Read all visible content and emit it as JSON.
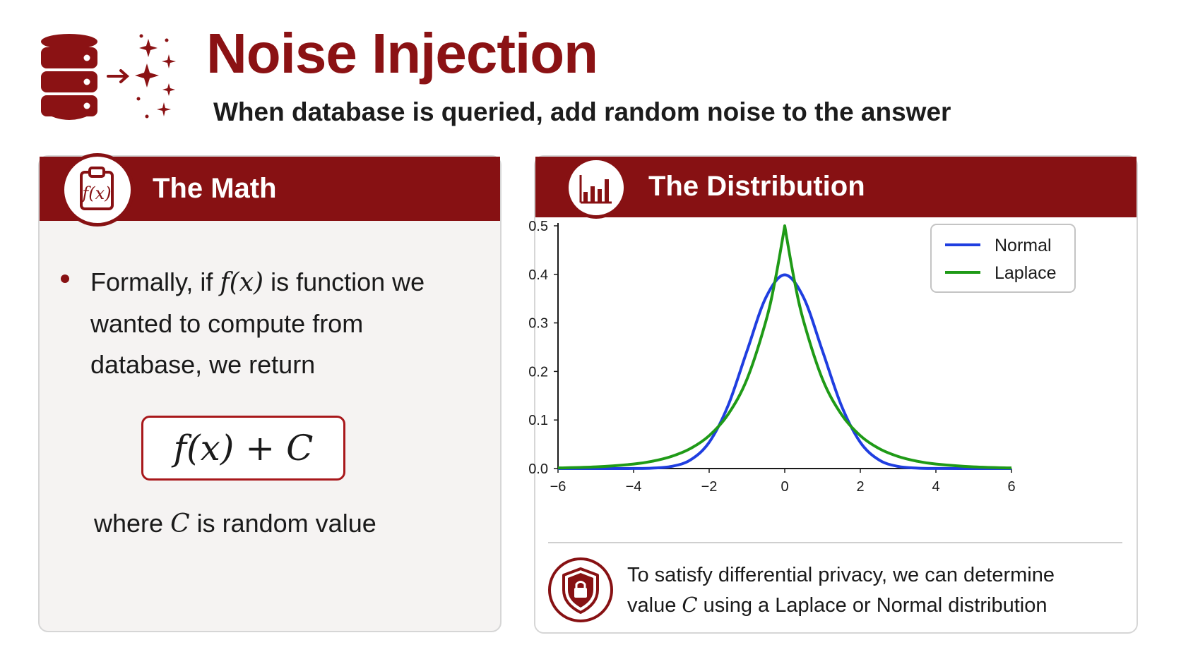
{
  "header": {
    "title": "Noise Injection",
    "subtitle": "When database is queried, add random noise to the answer"
  },
  "math_card": {
    "title": "The Math",
    "bullet_pre": "Formally, if ",
    "bullet_math": "f(x)",
    "bullet_post": " is function we wanted to compute from database, we return",
    "formula": "f(x) + C",
    "where_pre": "where ",
    "where_math": "C",
    "where_post": " is random value"
  },
  "distribution_card": {
    "title": "The Distribution",
    "note_line1": "To satisfy differential privacy, we can determine",
    "note_pre": "value ",
    "note_math": "C",
    "note_post": " using a Laplace or Normal distribution"
  },
  "icons": {
    "header": "database-noise-icon",
    "math": "function-clipboard-icon",
    "distribution": "bar-chart-icon",
    "note": "shield-lock-icon"
  },
  "colors": {
    "accent": "#871113",
    "title": "#8b1214",
    "normal": "#1f3ee0",
    "laplace": "#1f9a17"
  },
  "chart_data": {
    "type": "line",
    "xlim": [
      -6,
      6
    ],
    "ylim": [
      0,
      0.5
    ],
    "xticks": [
      -6,
      -4,
      -2,
      0,
      2,
      4,
      6
    ],
    "xtick_labels": [
      "−6",
      "−4",
      "−2",
      "0",
      "2",
      "4",
      "6"
    ],
    "yticks": [
      0,
      0.1,
      0.2,
      0.3,
      0.4,
      0.5
    ],
    "ytick_labels": [
      "0.0",
      "0.1",
      "0.2",
      "0.3",
      "0.4",
      "0.5"
    ],
    "grid": false,
    "legend_position": "top-right",
    "series": [
      {
        "name": "Normal",
        "color": "#1f3ee0",
        "x": [
          -6,
          -5,
          -4,
          -3.5,
          -3,
          -2.5,
          -2,
          -1.5,
          -1,
          -0.5,
          0,
          0.5,
          1,
          1.5,
          2,
          2.5,
          3,
          3.5,
          4,
          5,
          6
        ],
        "y": [
          0.0,
          0.0,
          0.0001,
          0.0009,
          0.0044,
          0.0175,
          0.054,
          0.1295,
          0.242,
          0.3521,
          0.3989,
          0.3521,
          0.242,
          0.1295,
          0.054,
          0.0175,
          0.0044,
          0.0009,
          0.0001,
          0.0,
          0.0
        ]
      },
      {
        "name": "Laplace",
        "color": "#1f9a17",
        "x": [
          -6,
          -5,
          -4,
          -3.5,
          -3,
          -2.5,
          -2,
          -1.5,
          -1,
          -0.5,
          -0.25,
          0,
          0.25,
          0.5,
          1,
          1.5,
          2,
          2.5,
          3,
          3.5,
          4,
          5,
          6
        ],
        "y": [
          0.0012,
          0.0034,
          0.0092,
          0.0151,
          0.0249,
          0.041,
          0.0677,
          0.1116,
          0.1839,
          0.3033,
          0.3894,
          0.5,
          0.3894,
          0.3033,
          0.1839,
          0.1116,
          0.0677,
          0.041,
          0.0249,
          0.0151,
          0.0092,
          0.0034,
          0.0012
        ]
      }
    ]
  }
}
